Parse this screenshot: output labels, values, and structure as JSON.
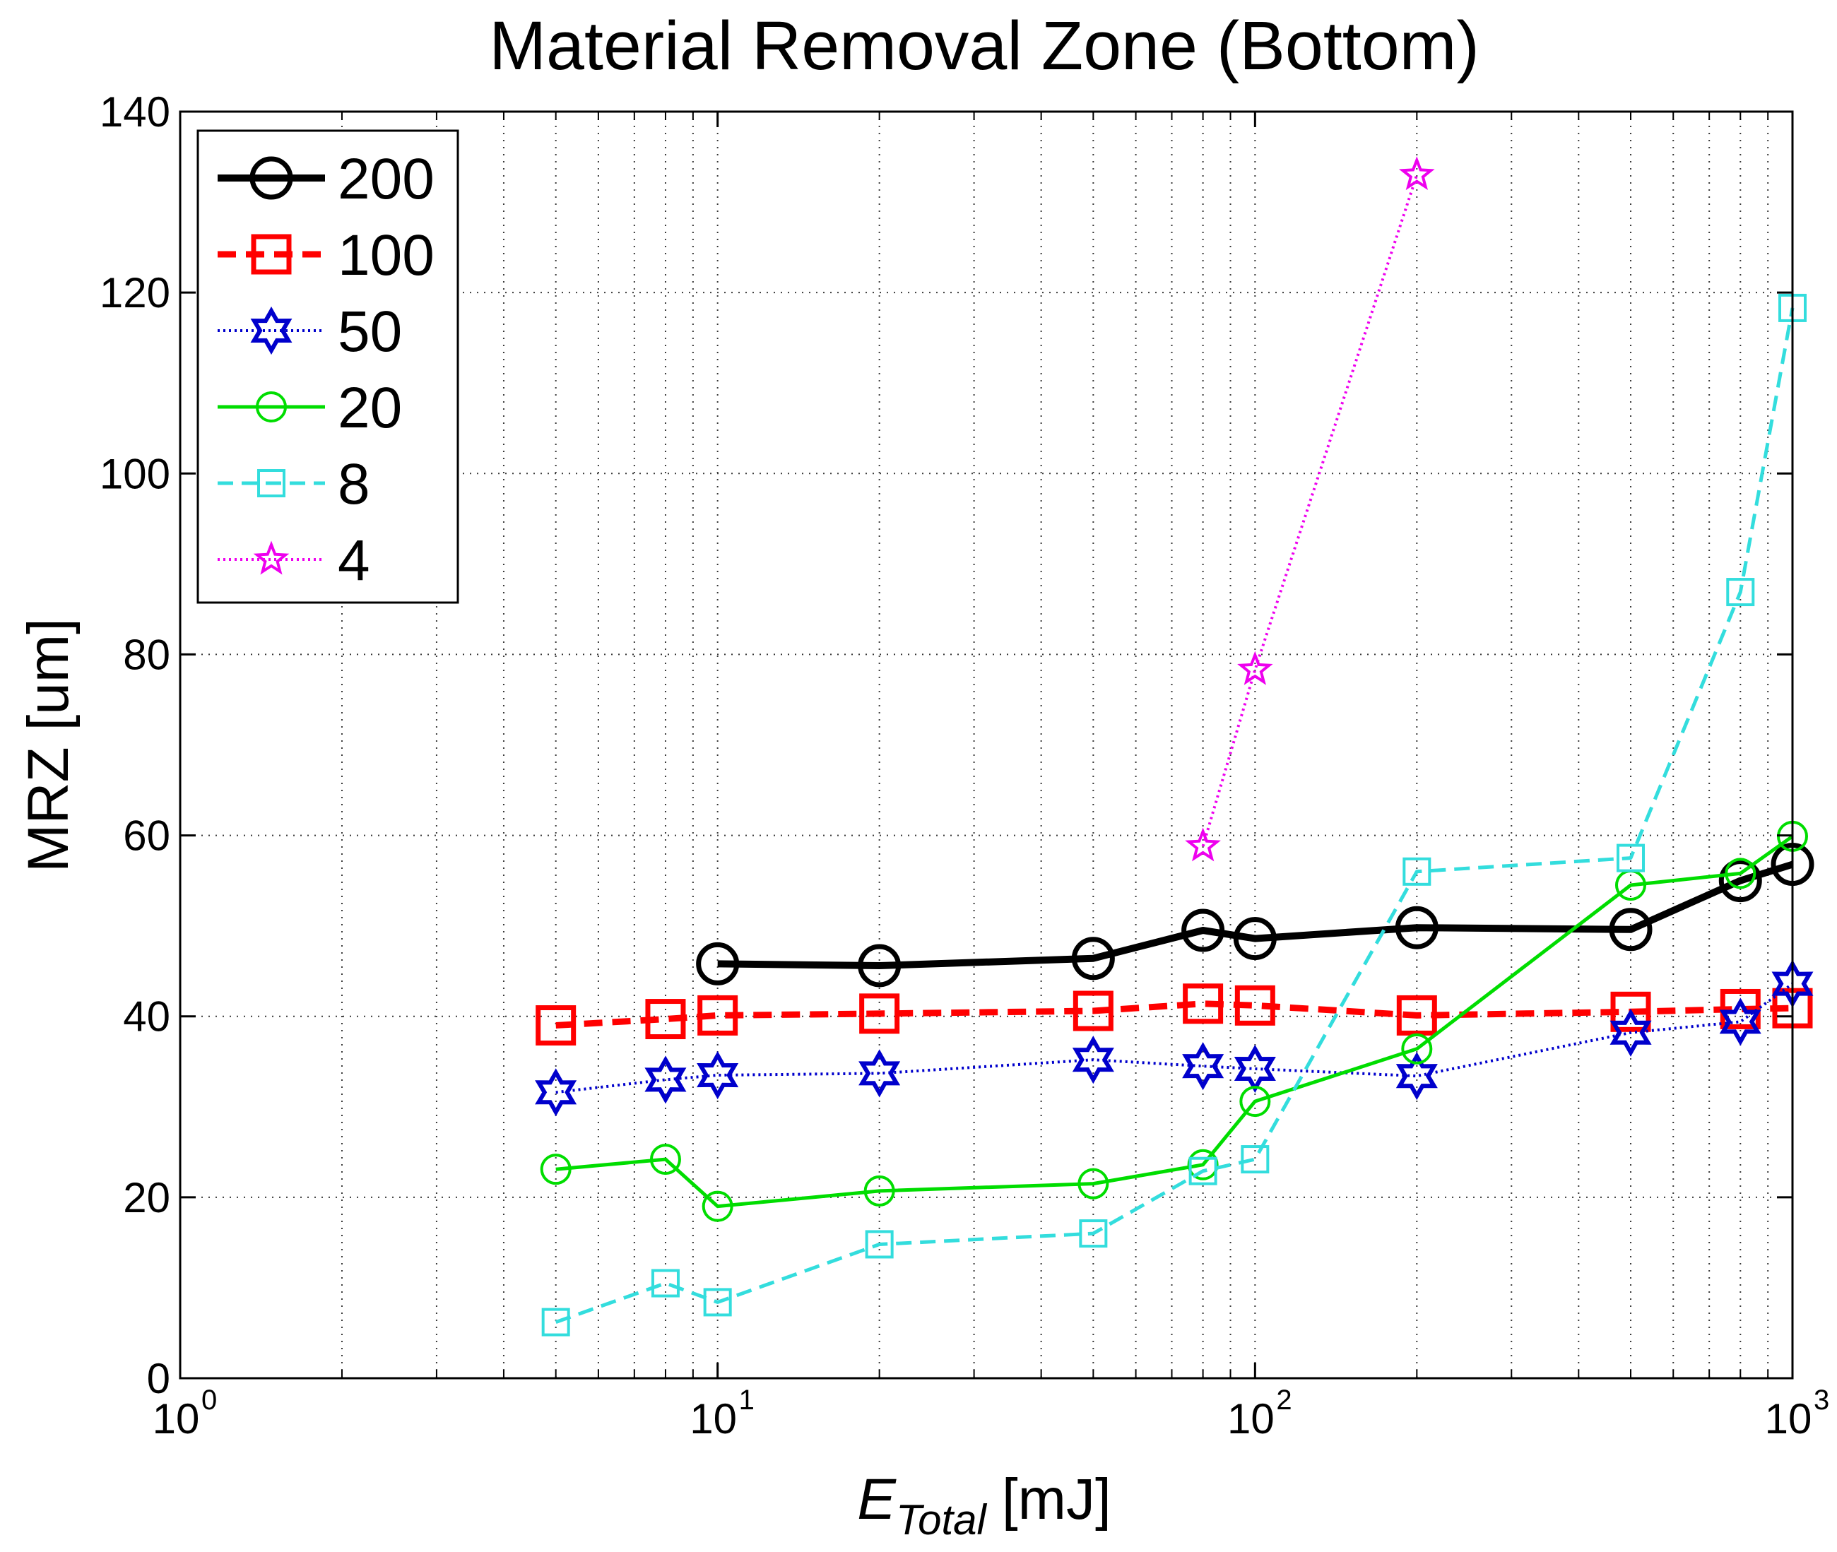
{
  "chart_data": {
    "type": "line",
    "title": "Material Removal Zone (Bottom)",
    "xlabel": {
      "main": "E",
      "subscript": "Total",
      "unit": "[mJ]"
    },
    "ylabel": "MRZ [um]",
    "xscale": "log",
    "xlim": [
      1,
      1000
    ],
    "ylim": [
      0,
      140
    ],
    "yticks": [
      0,
      20,
      40,
      60,
      80,
      100,
      120,
      140
    ],
    "xticks": [
      {
        "value": 1,
        "base": "10",
        "exp": "0"
      },
      {
        "value": 10,
        "base": "10",
        "exp": "1"
      },
      {
        "value": 100,
        "base": "10",
        "exp": "2"
      },
      {
        "value": 1000,
        "base": "10",
        "exp": "3"
      }
    ],
    "grid": true,
    "legend_position": "top-left",
    "series": [
      {
        "name": "200",
        "color": "#000000",
        "dash": "solid",
        "marker": "circle",
        "x": [
          10,
          20,
          50,
          80,
          100,
          200,
          500,
          800,
          1000
        ],
        "y": [
          45.8,
          45.6,
          46.4,
          49.5,
          48.6,
          49.8,
          49.6,
          55.0,
          56.8
        ]
      },
      {
        "name": "100",
        "color": "#ff0000",
        "dash": "dashed",
        "marker": "square",
        "x": [
          5,
          8,
          10,
          20,
          50,
          80,
          100,
          200,
          500,
          800,
          1000
        ],
        "y": [
          39.0,
          39.7,
          40.1,
          40.3,
          40.6,
          41.4,
          41.2,
          40.1,
          40.5,
          40.8,
          40.9
        ]
      },
      {
        "name": "50",
        "color": "#0000cc",
        "dash": "dotted",
        "marker": "hexagram",
        "x": [
          5,
          8,
          10,
          20,
          50,
          80,
          100,
          200,
          500,
          800,
          1000
        ],
        "y": [
          31.6,
          33.0,
          33.5,
          33.7,
          35.2,
          34.5,
          34.2,
          33.4,
          38.2,
          39.4,
          43.6
        ]
      },
      {
        "name": "20",
        "color": "#00dd00",
        "dash": "solid",
        "marker": "circle",
        "x": [
          5,
          8,
          10,
          20,
          50,
          80,
          100,
          200,
          500,
          800,
          1000
        ],
        "y": [
          23.1,
          24.2,
          19.0,
          20.7,
          21.5,
          23.6,
          30.6,
          36.4,
          54.5,
          55.8,
          59.9
        ]
      },
      {
        "name": "8",
        "color": "#33dddd",
        "dash": "dashed",
        "marker": "square",
        "x": [
          5,
          8,
          10,
          20,
          50,
          80,
          100,
          200,
          500,
          800,
          1000
        ],
        "y": [
          6.2,
          10.5,
          8.4,
          14.8,
          16.0,
          22.9,
          24.2,
          56.0,
          57.5,
          86.9,
          118.3
        ]
      },
      {
        "name": "4",
        "color": "#ee00ee",
        "dash": "dotted",
        "marker": "pentagram",
        "x": [
          80,
          100,
          200
        ],
        "y": [
          58.8,
          78.3,
          133.0
        ]
      }
    ]
  }
}
